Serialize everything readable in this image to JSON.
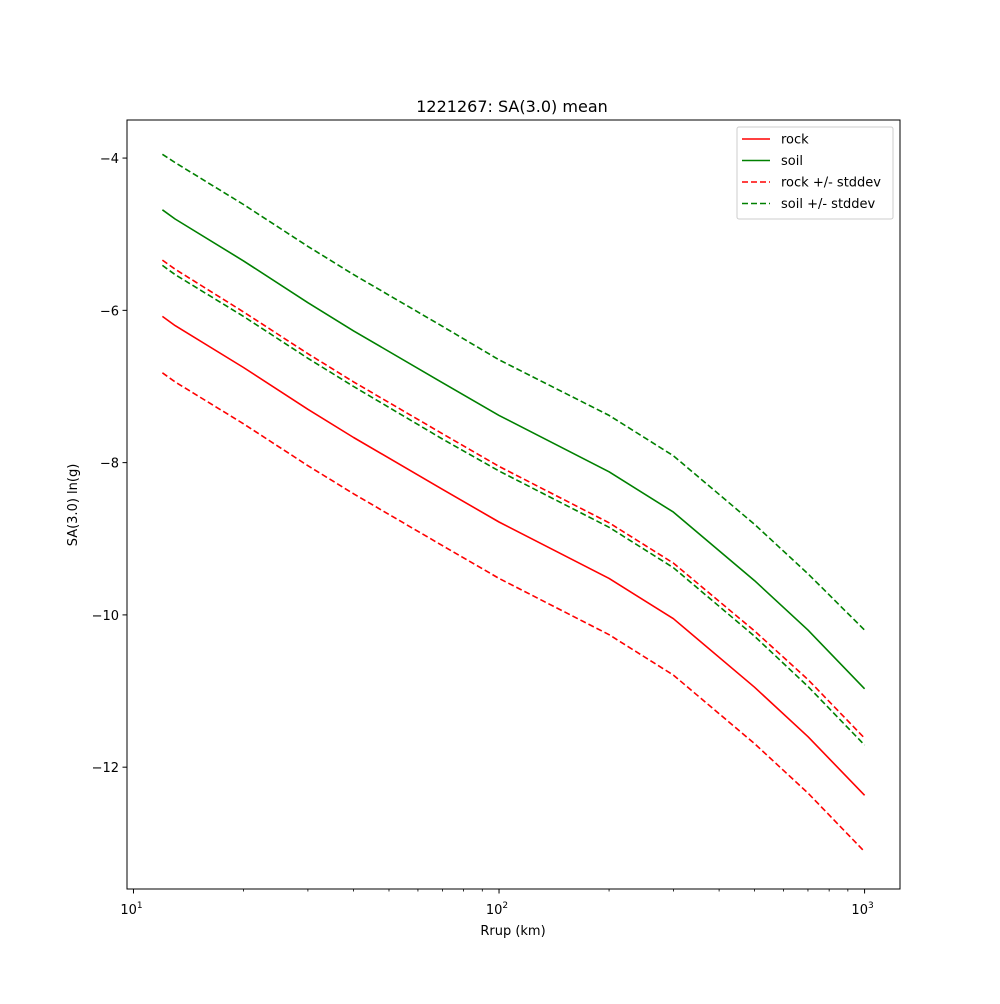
{
  "chart_data": {
    "type": "line",
    "title": "1221267: SA(3.0) mean",
    "xlabel": "Rrup (km)",
    "ylabel": "SA(3.0) ln(g)",
    "xscale": "log",
    "xlim": [
      9.6,
      1250
    ],
    "ylim": [
      -13.6,
      -3.5
    ],
    "grid": false,
    "legend_position": "top-right",
    "x_ticks": [
      {
        "value": 10,
        "base": "10",
        "exp": "1"
      },
      {
        "value": 100,
        "base": "10",
        "exp": "2"
      },
      {
        "value": 1000,
        "base": "10",
        "exp": "3"
      }
    ],
    "y_ticks": [
      {
        "value": -4,
        "label": "−4"
      },
      {
        "value": -6,
        "label": "−6"
      },
      {
        "value": -8,
        "label": "−8"
      },
      {
        "value": -10,
        "label": "−10"
      },
      {
        "value": -12,
        "label": "−12"
      }
    ],
    "x": [
      12,
      13,
      20,
      30,
      40,
      70,
      100,
      200,
      300,
      500,
      700,
      1000
    ],
    "series": [
      {
        "name": "rock",
        "color": "#ff0000",
        "dash": "solid",
        "values": [
          -6.08,
          -6.2,
          -6.75,
          -7.3,
          -7.67,
          -8.35,
          -8.78,
          -9.52,
          -10.05,
          -10.95,
          -11.6,
          -12.37
        ]
      },
      {
        "name": "soil",
        "color": "#008000",
        "dash": "solid",
        "values": [
          -4.68,
          -4.8,
          -5.35,
          -5.9,
          -6.27,
          -6.95,
          -7.38,
          -8.12,
          -8.65,
          -9.55,
          -10.2,
          -10.97
        ]
      },
      {
        "name": "rock +/- stddev",
        "color": "#ff0000",
        "dash": "dashed",
        "values": [
          -5.34,
          -5.46,
          -6.02,
          -6.57,
          -6.94,
          -7.62,
          -8.05,
          -8.79,
          -9.32,
          -10.21,
          -10.85,
          -11.62
        ]
      },
      {
        "name": "rock +/- stddev (lower)",
        "color": "#ff0000",
        "dash": "dashed",
        "values": [
          -6.82,
          -6.94,
          -7.49,
          -8.04,
          -8.41,
          -9.09,
          -9.52,
          -10.26,
          -10.79,
          -11.69,
          -12.34,
          -13.11
        ]
      },
      {
        "name": "soil +/- stddev",
        "color": "#008000",
        "dash": "dashed",
        "values": [
          -3.95,
          -4.06,
          -4.61,
          -5.16,
          -5.53,
          -6.21,
          -6.65,
          -7.38,
          -7.91,
          -8.81,
          -9.46,
          -10.2
        ]
      },
      {
        "name": "soil +/- stddev (lower)",
        "color": "#008000",
        "dash": "dashed",
        "values": [
          -5.41,
          -5.53,
          -6.08,
          -6.63,
          -7.0,
          -7.69,
          -8.11,
          -8.85,
          -9.38,
          -10.28,
          -10.94,
          -11.71
        ]
      }
    ],
    "legend": [
      {
        "label": "rock",
        "color": "#ff0000",
        "dash": "solid"
      },
      {
        "label": "soil",
        "color": "#008000",
        "dash": "solid"
      },
      {
        "label": "rock +/- stddev",
        "color": "#ff0000",
        "dash": "dashed"
      },
      {
        "label": "soil +/- stddev",
        "color": "#008000",
        "dash": "dashed"
      }
    ]
  }
}
